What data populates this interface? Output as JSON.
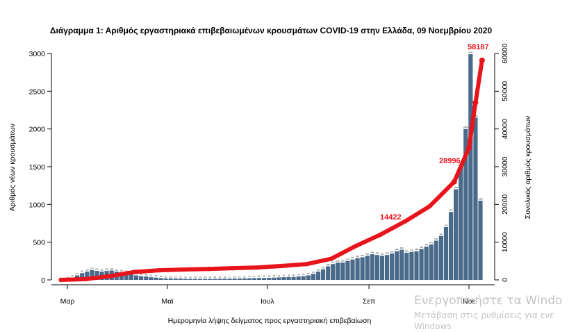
{
  "chart_data": {
    "type": "bar+line",
    "title": "Διάγραμμα 1: Αριθμός εργαστηριακά επιβεβαιωμένων κρουσμάτων COVID-19 στην Ελλάδα, 09 Νοεμβρίου 2020",
    "xlabel": "Ημερομηνία λήψης δείγματος προς εργαστηριακή επιβεβαίωση",
    "ylabel_left": "Αριθμός νέων κρουσμάτων",
    "ylabel_right": "Συνολικός αριθμός κρουσμάτων",
    "ylim_left": [
      0,
      3000
    ],
    "ylim_right": [
      0,
      60000
    ],
    "yticks_left": [
      "0",
      "500",
      "1000",
      "1500",
      "2000",
      "2500",
      "3000"
    ],
    "yticks_right": [
      "0",
      "10000",
      "20000",
      "30000",
      "40000",
      "50000",
      "60000"
    ],
    "x_ticks": [
      "Μαρ",
      "Μαϊ",
      "Ιουλ",
      "Σεπ",
      "Νοε"
    ],
    "annotations": [
      {
        "text": "14422",
        "color": "#e8141c"
      },
      {
        "text": "28996",
        "color": "#e8141c"
      },
      {
        "text": "58187",
        "color": "#e8141c"
      }
    ],
    "series": [
      {
        "kind": "bar",
        "axis": "left",
        "color": "#4a6a8a",
        "x": [
          "Feb 26",
          "Mar 1",
          "Mar 4",
          "Mar 7",
          "Mar 10",
          "Mar 13",
          "Mar 16",
          "Mar 19",
          "Mar 22",
          "Mar 25",
          "Mar 28",
          "Mar 31",
          "Apr 3",
          "Apr 6",
          "Apr 9",
          "Apr 12",
          "Apr 15",
          "Apr 18",
          "Apr 21",
          "Apr 24",
          "Apr 27",
          "Apr 30",
          "May 3",
          "May 6",
          "May 9",
          "May 12",
          "May 15",
          "May 18",
          "May 21",
          "May 24",
          "May 27",
          "May 30",
          "Jun 2",
          "Jun 5",
          "Jun 8",
          "Jun 11",
          "Jun 14",
          "Jun 17",
          "Jun 20",
          "Jun 23",
          "Jun 26",
          "Jun 29",
          "Jul 2",
          "Jul 5",
          "Jul 8",
          "Jul 11",
          "Jul 14",
          "Jul 17",
          "Jul 20",
          "Jul 23",
          "Jul 26",
          "Jul 29",
          "Aug 1",
          "Aug 4",
          "Aug 7",
          "Aug 10",
          "Aug 13",
          "Aug 16",
          "Aug 19",
          "Aug 22",
          "Aug 25",
          "Aug 28",
          "Aug 31",
          "Sep 3",
          "Sep 6",
          "Sep 9",
          "Sep 12",
          "Sep 15",
          "Sep 18",
          "Sep 21",
          "Sep 24",
          "Sep 27",
          "Sep 30",
          "Oct 3",
          "Oct 6",
          "Oct 9",
          "Oct 12",
          "Oct 15",
          "Oct 18",
          "Oct 21",
          "Oct 24",
          "Oct 27",
          "Oct 30",
          "Nov 2",
          "Nov 5",
          "Nov 8"
        ],
        "values": [
          2,
          10,
          30,
          60,
          90,
          110,
          130,
          120,
          110,
          120,
          125,
          110,
          100,
          90,
          75,
          60,
          50,
          45,
          35,
          30,
          25,
          20,
          20,
          18,
          18,
          15,
          14,
          14,
          13,
          13,
          14,
          15,
          15,
          16,
          17,
          18,
          18,
          20,
          22,
          24,
          25,
          26,
          28,
          30,
          33,
          36,
          38,
          40,
          45,
          50,
          60,
          80,
          110,
          140,
          180,
          210,
          230,
          230,
          250,
          270,
          290,
          300,
          320,
          340,
          330,
          320,
          330,
          350,
          380,
          400,
          360,
          370,
          380,
          410,
          440,
          470,
          520,
          580,
          700,
          900,
          1200,
          1500,
          2000,
          2990,
          2150,
          1050
        ]
      },
      {
        "kind": "line",
        "axis": "right",
        "name": "cumulative",
        "color": "#e8141c",
        "x": [
          "Feb 26",
          "Mar 12",
          "Mar 27",
          "Apr 11",
          "Apr 26",
          "May 11",
          "May 26",
          "Jun 10",
          "Jun 25",
          "Jul 10",
          "Jul 25",
          "Aug 9",
          "Aug 24",
          "Sep 8",
          "Sep 23",
          "Oct 8",
          "Oct 23",
          "Nov 1",
          "Nov 5",
          "Nov 9"
        ],
        "values": [
          0,
          200,
          1000,
          2100,
          2550,
          2750,
          2900,
          3100,
          3300,
          3700,
          4200,
          5600,
          9000,
          12000,
          15500,
          19500,
          26000,
          35000,
          47000,
          58187
        ]
      }
    ]
  },
  "watermark": {
    "line1": "Ενεργοποιήστε τα Windo",
    "line2": "Μετάβαση στις ρυθμίσεις για ενε",
    "line3": "Windows"
  }
}
